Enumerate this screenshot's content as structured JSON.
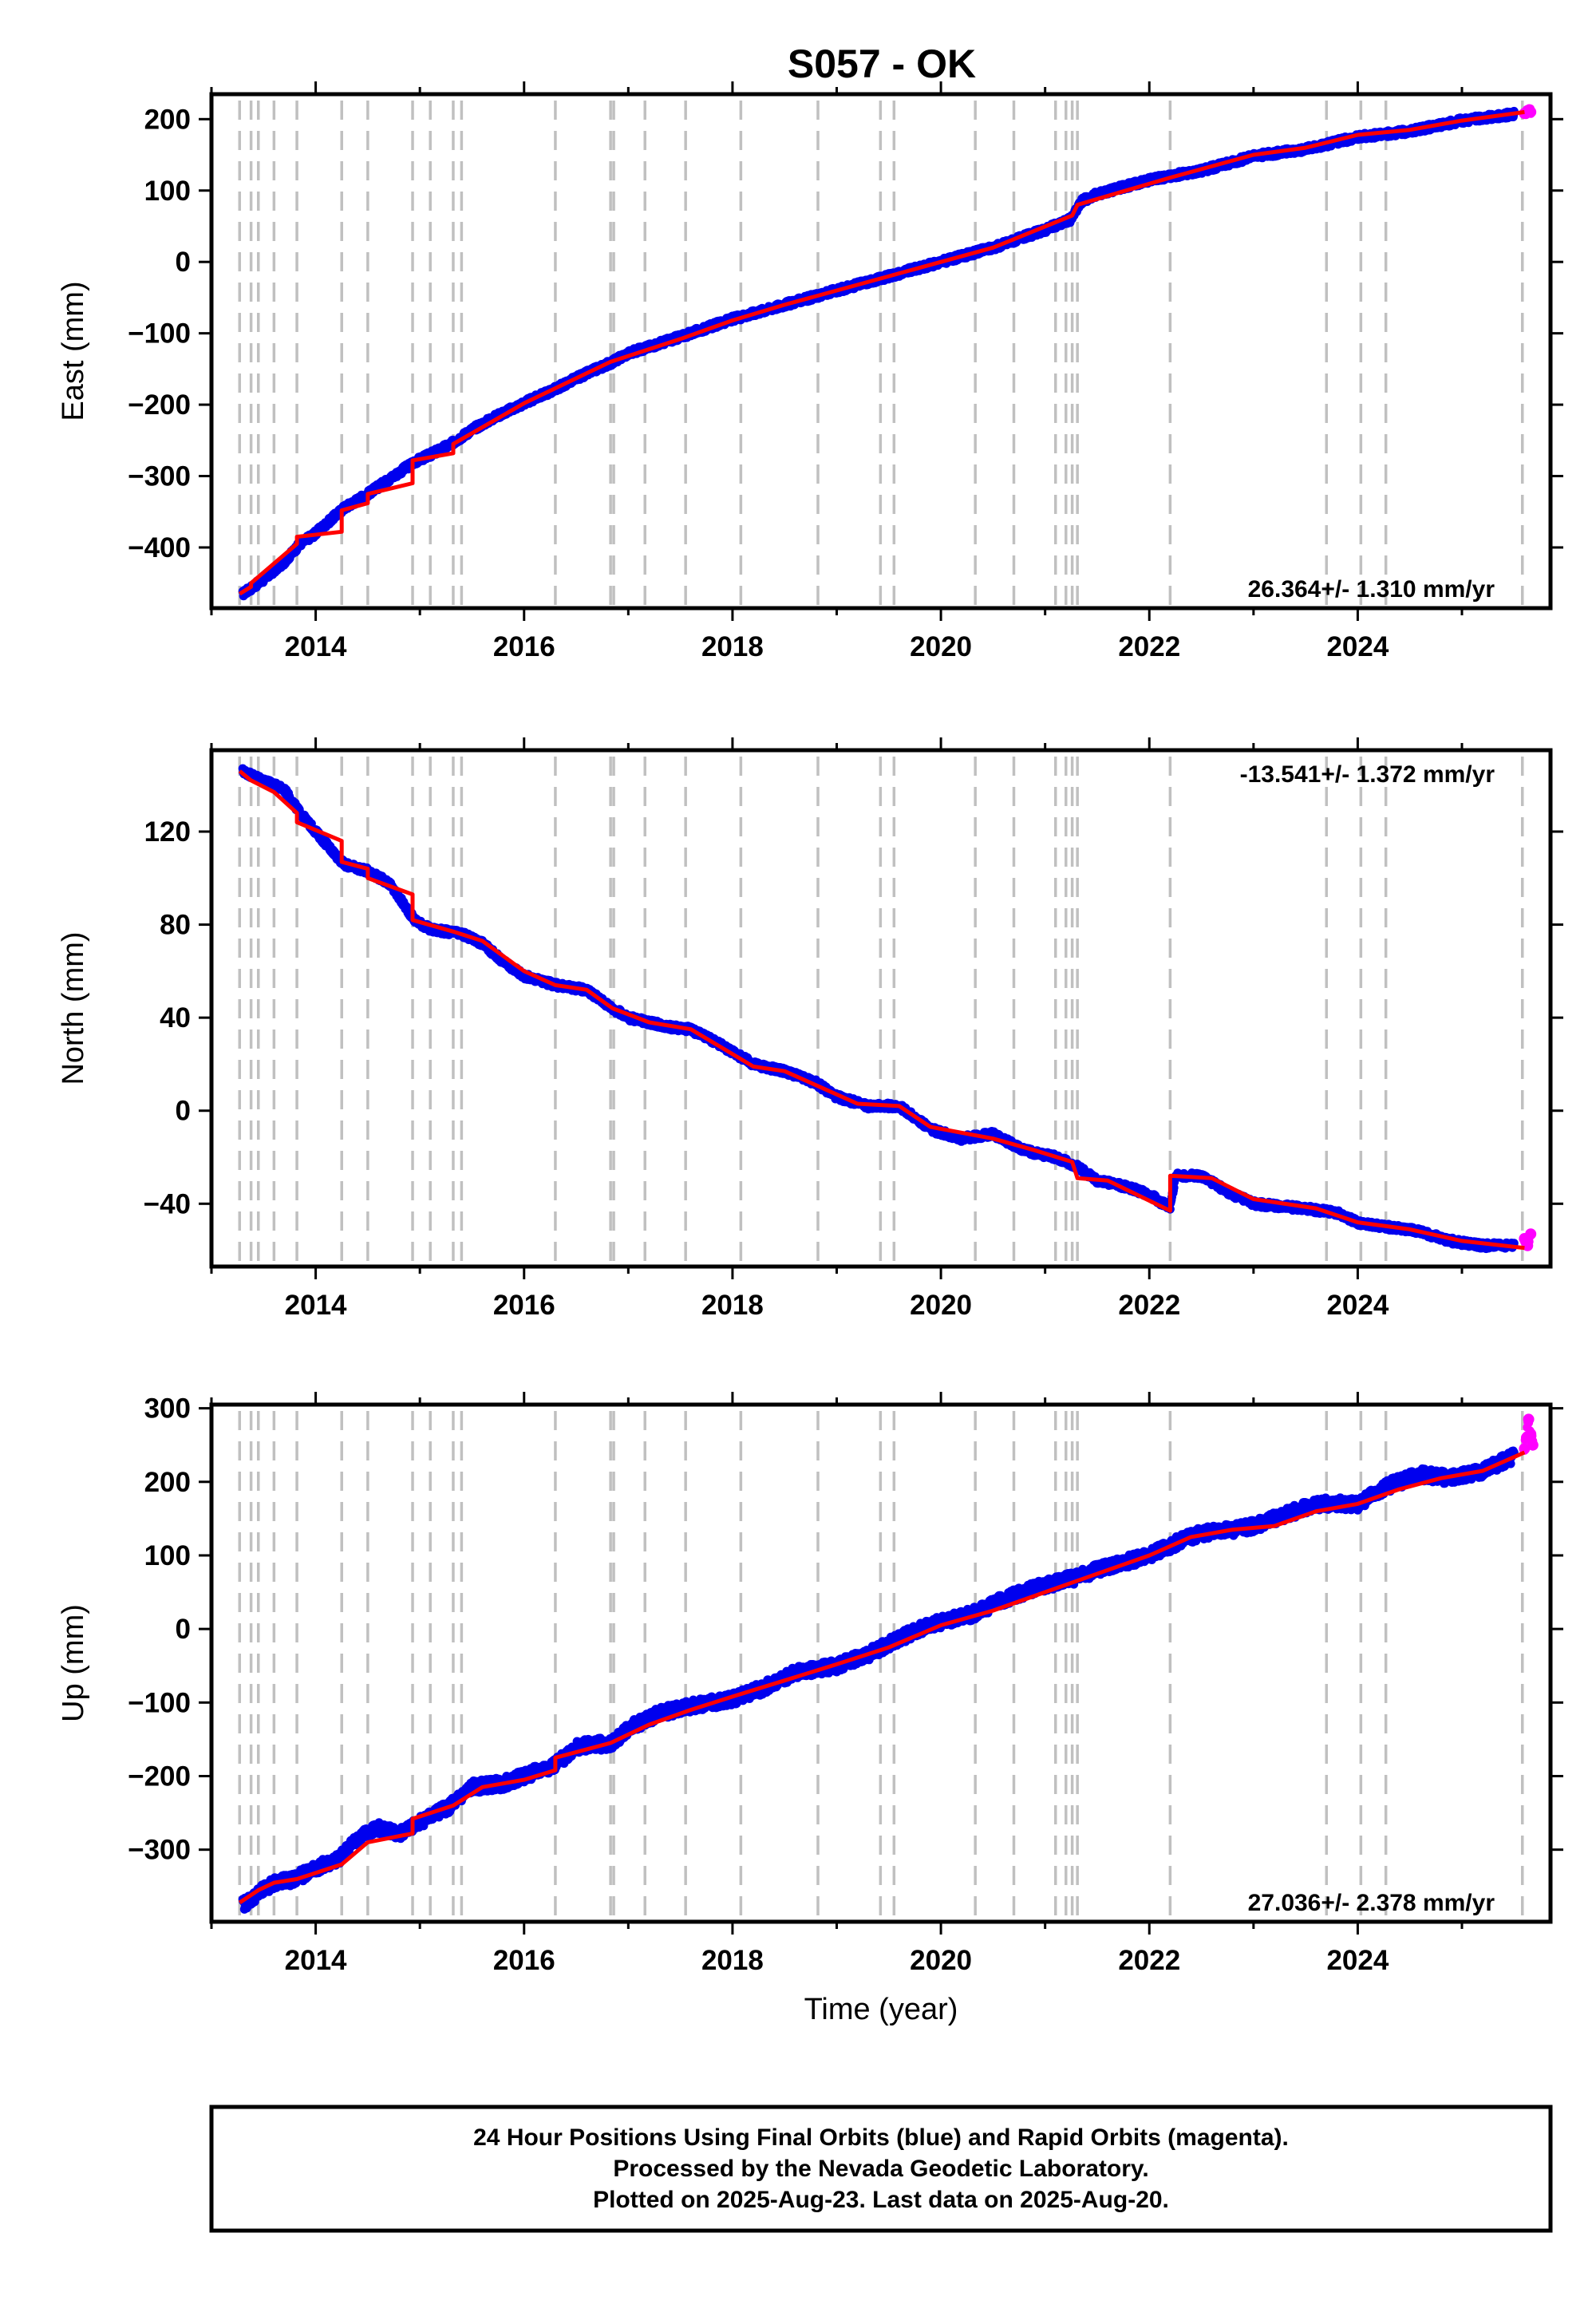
{
  "title": "S057 - OK",
  "colors": {
    "final": "#0000ee",
    "rapid": "#ff00ff",
    "model": "#ff0000",
    "events": "#c0c0c0"
  },
  "footer": {
    "line1": "24 Hour Positions Using Final Orbits (blue) and Rapid Orbits (magenta).",
    "line2": "Processed by the Nevada Geodetic Laboratory.",
    "line3": "Plotted on 2025-Aug-23. Last data on 2025-Aug-20."
  },
  "chart_data": [
    {
      "type": "scatter",
      "component": "east",
      "title": "",
      "xlabel": "",
      "ylabel": "East (mm)",
      "rate_label": "26.364+/- 1.310 mm/yr",
      "xlim": [
        2013.0,
        2025.85
      ],
      "ylim": [
        -485,
        235
      ],
      "xticks": [
        2014,
        2016,
        2018,
        2020,
        2022,
        2024
      ],
      "yticks": [
        -400,
        -300,
        -200,
        -100,
        0,
        100,
        200
      ],
      "event_lines": [
        2013.27,
        2013.38,
        2013.45,
        2013.6,
        2013.82,
        2014.25,
        2014.5,
        2014.93,
        2015.1,
        2015.32,
        2015.4,
        2016.3,
        2016.83,
        2016.86,
        2017.16,
        2017.55,
        2018.08,
        2018.82,
        2019.42,
        2019.55,
        2020.33,
        2020.7,
        2021.1,
        2021.2,
        2021.26,
        2021.31,
        2022.2,
        2023.7,
        2024.03,
        2024.27,
        2025.58
      ],
      "series": [
        {
          "kind": "final",
          "x": [
            2013.3,
            2013.5,
            2013.7,
            2013.85,
            2014.0,
            2014.27,
            2014.5,
            2014.7,
            2014.95,
            2015.1,
            2015.3,
            2015.5,
            2015.75,
            2016.0,
            2016.3,
            2016.5,
            2016.85,
            2017.0,
            2017.5,
            2018.0,
            2018.5,
            2019.0,
            2019.5,
            2020.0,
            2020.5,
            2021.0,
            2021.25,
            2021.35,
            2021.5,
            2022.0,
            2022.5,
            2023.0,
            2023.5,
            2024.0,
            2024.5,
            2025.0,
            2025.5
          ],
          "y": [
            -465,
            -445,
            -420,
            -395,
            -380,
            -345,
            -325,
            -305,
            -280,
            -270,
            -255,
            -235,
            -215,
            -198,
            -178,
            -163,
            -140,
            -128,
            -105,
            -80,
            -60,
            -40,
            -20,
            0,
            20,
            45,
            60,
            85,
            95,
            115,
            128,
            148,
            158,
            175,
            183,
            198,
            207
          ]
        },
        {
          "kind": "rapid",
          "x": [
            2025.6,
            2025.63,
            2025.66
          ],
          "y": [
            208,
            212,
            210
          ]
        }
      ],
      "model": {
        "x": [
          2013.27,
          2013.38,
          2013.38,
          2013.82,
          2013.82,
          2014.25,
          2014.25,
          2014.5,
          2014.5,
          2014.93,
          2014.93,
          2015.32,
          2015.32,
          2016.0,
          2016.83,
          2017.5,
          2018.0,
          2018.5,
          2019.0,
          2019.5,
          2020.0,
          2020.5,
          2021.26,
          2021.31,
          2022.2,
          2023.0,
          2023.5,
          2024.0,
          2024.5,
          2025.0,
          2025.6
        ],
        "y": [
          -465,
          -455,
          -450,
          -395,
          -385,
          -378,
          -348,
          -338,
          -325,
          -310,
          -278,
          -268,
          -255,
          -198,
          -140,
          -108,
          -82,
          -60,
          -40,
          -20,
          0,
          20,
          65,
          80,
          118,
          150,
          160,
          178,
          185,
          198,
          210
        ]
      }
    },
    {
      "type": "scatter",
      "component": "north",
      "title": "",
      "xlabel": "",
      "ylabel": "North (mm)",
      "rate_label": "-13.541+/- 1.372 mm/yr",
      "xlim": [
        2013.0,
        2025.85
      ],
      "ylim": [
        -67,
        155
      ],
      "xticks": [
        2014,
        2016,
        2018,
        2020,
        2022,
        2024
      ],
      "yticks": [
        -40,
        0,
        40,
        80,
        120
      ],
      "event_lines": [
        2013.27,
        2013.38,
        2013.45,
        2013.6,
        2013.82,
        2014.25,
        2014.5,
        2014.93,
        2015.1,
        2015.32,
        2015.4,
        2016.3,
        2016.83,
        2016.86,
        2017.16,
        2017.55,
        2018.08,
        2018.82,
        2019.42,
        2019.55,
        2020.33,
        2020.7,
        2021.1,
        2021.2,
        2021.26,
        2021.31,
        2022.2,
        2023.7,
        2024.03,
        2024.27,
        2025.58
      ],
      "series": [
        {
          "kind": "final",
          "x": [
            2013.3,
            2013.5,
            2013.7,
            2013.85,
            2014.0,
            2014.27,
            2014.5,
            2014.7,
            2014.95,
            2015.1,
            2015.4,
            2015.6,
            2015.8,
            2016.0,
            2016.3,
            2016.6,
            2016.85,
            2017.0,
            2017.4,
            2017.6,
            2017.9,
            2018.2,
            2018.5,
            2018.8,
            2019.0,
            2019.3,
            2019.6,
            2019.9,
            2020.2,
            2020.5,
            2020.8,
            2021.1,
            2021.3,
            2021.5,
            2021.8,
            2022.0,
            2022.2,
            2022.25,
            2022.5,
            2022.8,
            2023.0,
            2023.5,
            2023.8,
            2024.0,
            2024.3,
            2024.6,
            2024.9,
            2025.2,
            2025.5
          ],
          "y": [
            146,
            142,
            138,
            128,
            120,
            106,
            103,
            98,
            82,
            78,
            76,
            72,
            64,
            58,
            54,
            52,
            44,
            40,
            36,
            35,
            28,
            20,
            17,
            12,
            6,
            2,
            2,
            -8,
            -12,
            -10,
            -17,
            -20,
            -24,
            -30,
            -33,
            -36,
            -42,
            -28,
            -28,
            -36,
            -40,
            -42,
            -44,
            -48,
            -50,
            -52,
            -56,
            -58,
            -58
          ]
        },
        {
          "kind": "rapid",
          "x": [
            2025.6,
            2025.63,
            2025.66
          ],
          "y": [
            -55,
            -58,
            -53
          ]
        }
      ],
      "model": {
        "x": [
          2013.27,
          2013.38,
          2013.6,
          2013.82,
          2013.82,
          2014.25,
          2014.25,
          2014.5,
          2014.5,
          2014.93,
          2014.93,
          2015.32,
          2015.6,
          2016.0,
          2016.3,
          2016.6,
          2016.85,
          2017.2,
          2017.6,
          2017.9,
          2018.2,
          2018.5,
          2018.8,
          2019.2,
          2019.6,
          2019.9,
          2020.5,
          2020.9,
          2021.26,
          2021.31,
          2021.6,
          2022.2,
          2022.2,
          2022.6,
          2023.0,
          2023.6,
          2024.0,
          2024.5,
          2025.0,
          2025.6
        ],
        "y": [
          146,
          142,
          137,
          128,
          124,
          116,
          107,
          104,
          100,
          93,
          82,
          77,
          73,
          60,
          54,
          52,
          44,
          38,
          35,
          27,
          19,
          17,
          11,
          3,
          2,
          -7,
          -12,
          -17,
          -22,
          -29,
          -30,
          -43,
          -28,
          -29,
          -38,
          -42,
          -48,
          -51,
          -56,
          -59
        ]
      }
    },
    {
      "type": "scatter",
      "component": "up",
      "title": "",
      "xlabel": "Time (year)",
      "ylabel": "Up (mm)",
      "rate_label": "27.036+/- 2.378 mm/yr",
      "xlim": [
        2013.0,
        2025.85
      ],
      "ylim": [
        -398,
        305
      ],
      "xticks": [
        2014,
        2016,
        2018,
        2020,
        2022,
        2024
      ],
      "yticks": [
        -300,
        -200,
        -100,
        0,
        100,
        200,
        300
      ],
      "event_lines": [
        2013.27,
        2013.38,
        2013.45,
        2013.6,
        2013.82,
        2014.25,
        2014.5,
        2014.93,
        2015.1,
        2015.32,
        2015.4,
        2016.3,
        2016.83,
        2016.86,
        2017.16,
        2017.55,
        2018.08,
        2018.82,
        2019.42,
        2019.55,
        2020.33,
        2020.7,
        2021.1,
        2021.2,
        2021.26,
        2021.31,
        2022.2,
        2023.7,
        2024.03,
        2024.27,
        2025.58
      ],
      "series": [
        {
          "kind": "final",
          "x": [
            2013.3,
            2013.45,
            2013.6,
            2013.8,
            2014.0,
            2014.2,
            2014.4,
            2014.6,
            2014.8,
            2014.95,
            2015.1,
            2015.3,
            2015.5,
            2015.8,
            2016.0,
            2016.3,
            2016.5,
            2016.85,
            2017.0,
            2017.3,
            2017.6,
            2018.0,
            2018.3,
            2018.6,
            2019.0,
            2019.3,
            2019.5,
            2019.8,
            2020.0,
            2020.3,
            2020.6,
            2021.0,
            2021.3,
            2021.5,
            2022.0,
            2022.3,
            2022.5,
            2022.8,
            2023.0,
            2023.3,
            2023.6,
            2024.0,
            2024.3,
            2024.6,
            2024.9,
            2025.2,
            2025.5
          ],
          "y": [
            -375,
            -360,
            -345,
            -340,
            -325,
            -315,
            -285,
            -270,
            -280,
            -265,
            -255,
            -240,
            -215,
            -210,
            -200,
            -185,
            -160,
            -155,
            -135,
            -115,
            -105,
            -95,
            -80,
            -60,
            -50,
            -35,
            -20,
            0,
            10,
            20,
            40,
            60,
            70,
            80,
            100,
            120,
            130,
            135,
            140,
            155,
            170,
            170,
            195,
            210,
            205,
            215,
            235
          ]
        },
        {
          "kind": "rapid",
          "x": [
            2025.6,
            2025.62,
            2025.64,
            2025.66,
            2025.68
          ],
          "y": [
            245,
            260,
            285,
            265,
            250
          ]
        }
      ],
      "model": {
        "x": [
          2013.27,
          2013.45,
          2013.6,
          2013.82,
          2014.25,
          2014.5,
          2014.93,
          2014.93,
          2015.32,
          2015.6,
          2016.0,
          2016.3,
          2016.3,
          2016.83,
          2017.2,
          2017.6,
          2018.0,
          2018.5,
          2019.0,
          2019.5,
          2020.0,
          2020.5,
          2021.0,
          2021.3,
          2022.0,
          2022.4,
          2022.8,
          2023.2,
          2023.6,
          2024.0,
          2024.4,
          2024.8,
          2025.2,
          2025.6
        ],
        "y": [
          -372,
          -355,
          -345,
          -340,
          -320,
          -290,
          -278,
          -258,
          -240,
          -215,
          -205,
          -192,
          -175,
          -155,
          -130,
          -110,
          -92,
          -70,
          -48,
          -25,
          5,
          25,
          50,
          65,
          100,
          125,
          135,
          140,
          160,
          170,
          190,
          205,
          215,
          240
        ]
      }
    }
  ]
}
